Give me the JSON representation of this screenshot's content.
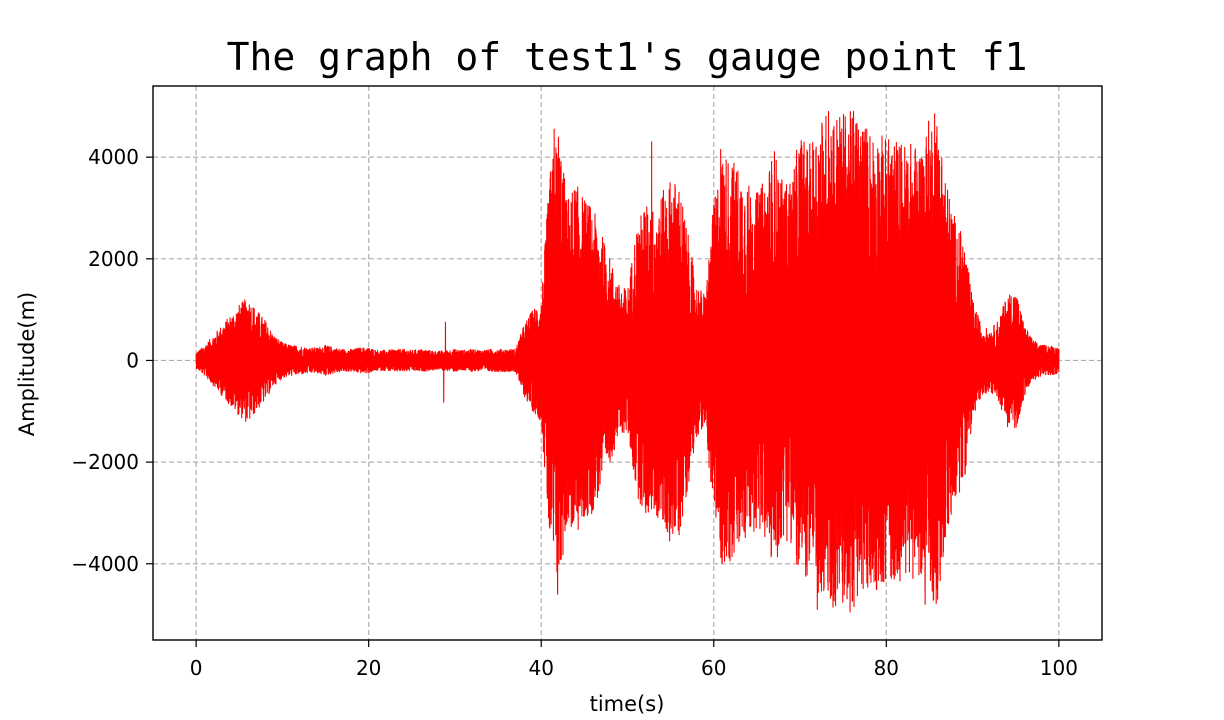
{
  "chart_data": {
    "type": "line",
    "title": "The graph of test1's gauge point f1",
    "xlabel": "time(s)",
    "ylabel": "Amplitude(m)",
    "xlim": [
      -5,
      105
    ],
    "ylim": [
      -5500,
      5400
    ],
    "grid": true,
    "grid_style": "dashed",
    "series": [
      {
        "color": "#ff0000"
      }
    ],
    "x_ticks": [
      0,
      20,
      40,
      60,
      80,
      100
    ],
    "x_tick_labels": [
      "0",
      "20",
      "40",
      "60",
      "80",
      "100"
    ],
    "y_ticks": [
      4000,
      2000,
      0,
      -2000,
      -4000
    ],
    "y_tick_labels": [
      "4000",
      "2000",
      "0",
      "−2000",
      "−4000"
    ],
    "envelope": [
      [
        0,
        150
      ],
      [
        1,
        300
      ],
      [
        2,
        500
      ],
      [
        3,
        700
      ],
      [
        4,
        900
      ],
      [
        5,
        1100
      ],
      [
        6,
        1250
      ],
      [
        7,
        1000
      ],
      [
        8,
        800
      ],
      [
        9,
        500
      ],
      [
        10,
        350
      ],
      [
        11,
        300
      ],
      [
        12,
        280
      ],
      [
        13,
        250
      ],
      [
        14,
        250
      ],
      [
        15,
        300
      ],
      [
        16,
        250
      ],
      [
        17,
        220
      ],
      [
        18,
        220
      ],
      [
        19,
        250
      ],
      [
        20,
        250
      ],
      [
        21,
        200
      ],
      [
        22,
        200
      ],
      [
        23,
        220
      ],
      [
        24,
        220
      ],
      [
        25,
        200
      ],
      [
        26,
        220
      ],
      [
        27,
        200
      ],
      [
        28,
        180
      ],
      [
        29,
        200
      ],
      [
        30,
        220
      ],
      [
        31,
        200
      ],
      [
        32,
        220
      ],
      [
        33,
        200
      ],
      [
        34,
        220
      ],
      [
        35,
        220
      ],
      [
        36,
        220
      ],
      [
        37,
        220
      ],
      [
        38,
        700
      ],
      [
        39,
        1000
      ],
      [
        40,
        1200
      ],
      [
        41,
        3700
      ],
      [
        42,
        4600
      ],
      [
        43,
        3200
      ],
      [
        44,
        3500
      ],
      [
        45,
        3200
      ],
      [
        46,
        3000
      ],
      [
        47,
        2500
      ],
      [
        48,
        2000
      ],
      [
        49,
        1500
      ],
      [
        50,
        1400
      ],
      [
        51,
        2600
      ],
      [
        52,
        3100
      ],
      [
        53,
        3000
      ],
      [
        54,
        3300
      ],
      [
        55,
        3600
      ],
      [
        56,
        3500
      ],
      [
        57,
        2500
      ],
      [
        58,
        1500
      ],
      [
        59,
        1300
      ],
      [
        60,
        3100
      ],
      [
        61,
        4100
      ],
      [
        62,
        4000
      ],
      [
        63,
        3800
      ],
      [
        64,
        3500
      ],
      [
        65,
        3300
      ],
      [
        66,
        3600
      ],
      [
        67,
        4200
      ],
      [
        68,
        3500
      ],
      [
        69,
        3600
      ],
      [
        70,
        4500
      ],
      [
        71,
        4200
      ],
      [
        72,
        4700
      ],
      [
        73,
        4900
      ],
      [
        74,
        4900
      ],
      [
        75,
        4900
      ],
      [
        76,
        4900
      ],
      [
        77,
        4800
      ],
      [
        78,
        4600
      ],
      [
        79,
        4500
      ],
      [
        80,
        4400
      ],
      [
        81,
        4400
      ],
      [
        82,
        4300
      ],
      [
        83,
        4300
      ],
      [
        84,
        4200
      ],
      [
        85,
        4800
      ],
      [
        86,
        4800
      ],
      [
        87,
        3500
      ],
      [
        88,
        2800
      ],
      [
        89,
        2400
      ],
      [
        90,
        1200
      ],
      [
        91,
        700
      ],
      [
        92,
        600
      ],
      [
        93,
        800
      ],
      [
        94,
        1300
      ],
      [
        95,
        1400
      ],
      [
        96,
        700
      ],
      [
        97,
        400
      ],
      [
        98,
        300
      ],
      [
        99,
        300
      ],
      [
        100,
        250
      ]
    ],
    "spikes": [
      {
        "x": 28.7,
        "y": -820
      },
      {
        "x": 28.9,
        "y": 750
      },
      {
        "x": 41.0,
        "y": -3300
      },
      {
        "x": 41.5,
        "y": 4550
      },
      {
        "x": 41.9,
        "y": -4600
      },
      {
        "x": 52.8,
        "y": 4300
      },
      {
        "x": 60.8,
        "y": 4150
      },
      {
        "x": 72.0,
        "y": -4900
      },
      {
        "x": 73.3,
        "y": 4900
      },
      {
        "x": 75.8,
        "y": -4950
      },
      {
        "x": 76.2,
        "y": 4900
      },
      {
        "x": 85.6,
        "y": 4850
      },
      {
        "x": 84.5,
        "y": -4800
      }
    ]
  }
}
